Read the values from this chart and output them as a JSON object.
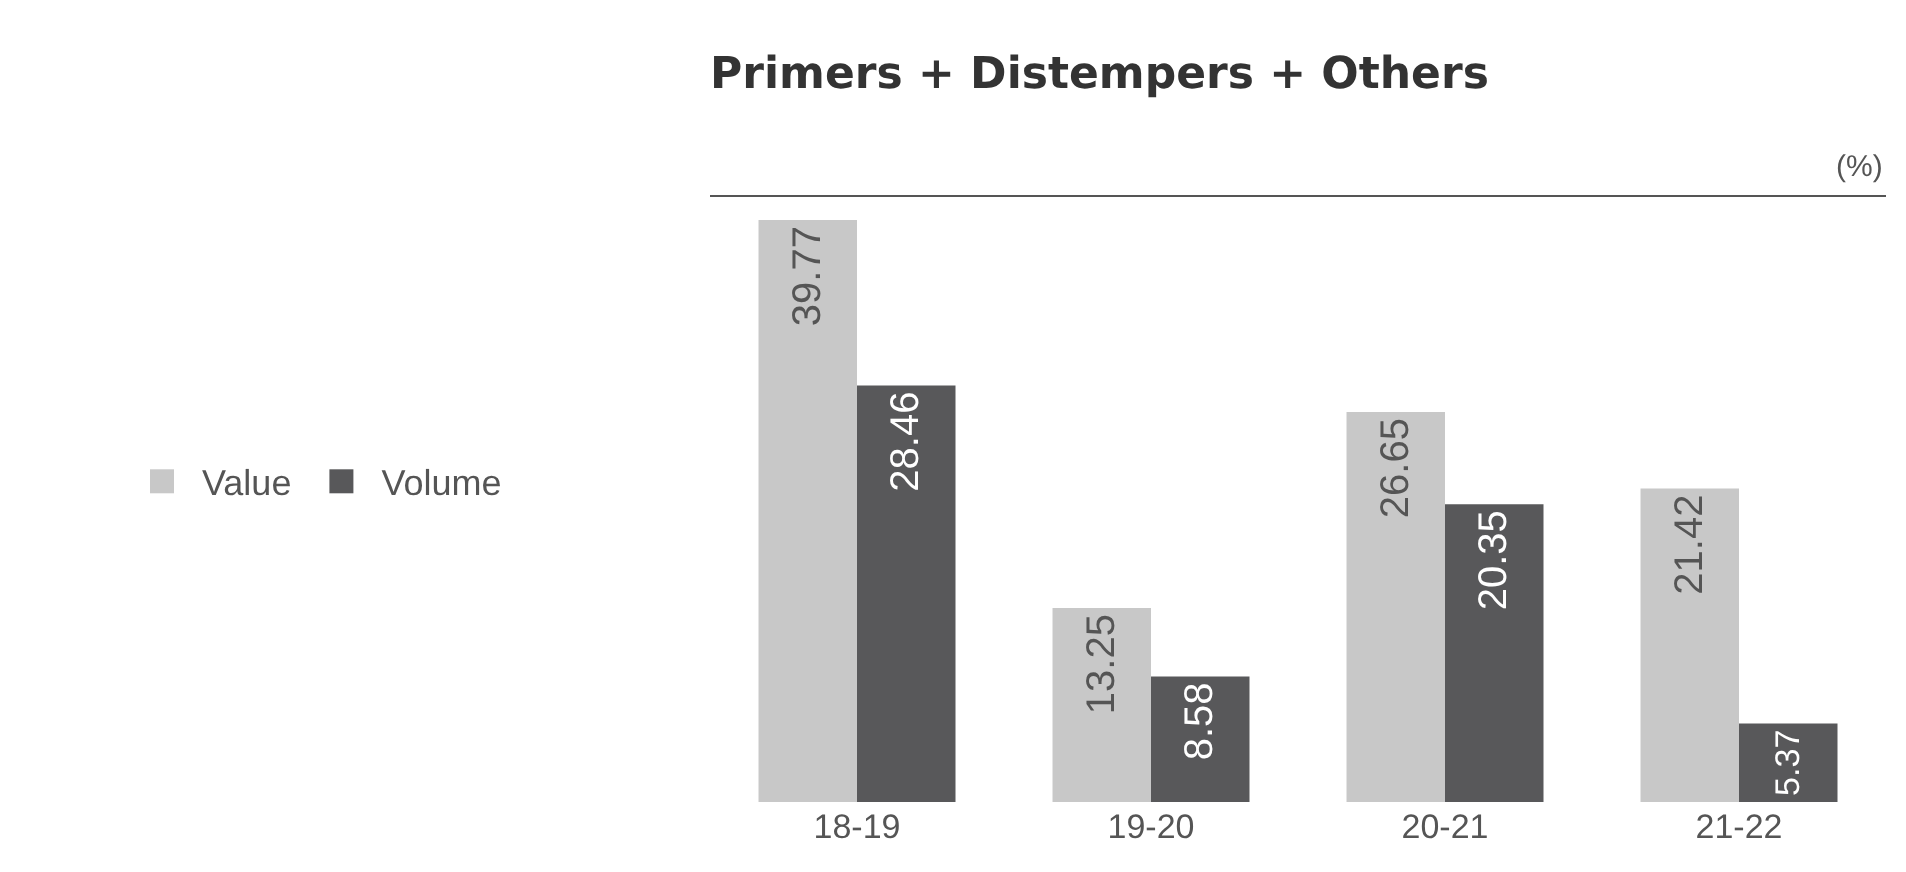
{
  "chart_data": {
    "type": "bar",
    "title": "Primers + Distempers + Others",
    "annotations": [
      "(%)"
    ],
    "categories": [
      "18-19",
      "19-20",
      "20-21",
      "21-22"
    ],
    "series": [
      {
        "name": "Value",
        "color": "#c8c8c8",
        "values": [
          39.77,
          13.25,
          26.65,
          21.42
        ]
      },
      {
        "name": "Volume",
        "color": "#58585a",
        "values": [
          28.46,
          8.58,
          20.35,
          5.37
        ]
      }
    ],
    "data_labels": true,
    "legend": "left"
  }
}
